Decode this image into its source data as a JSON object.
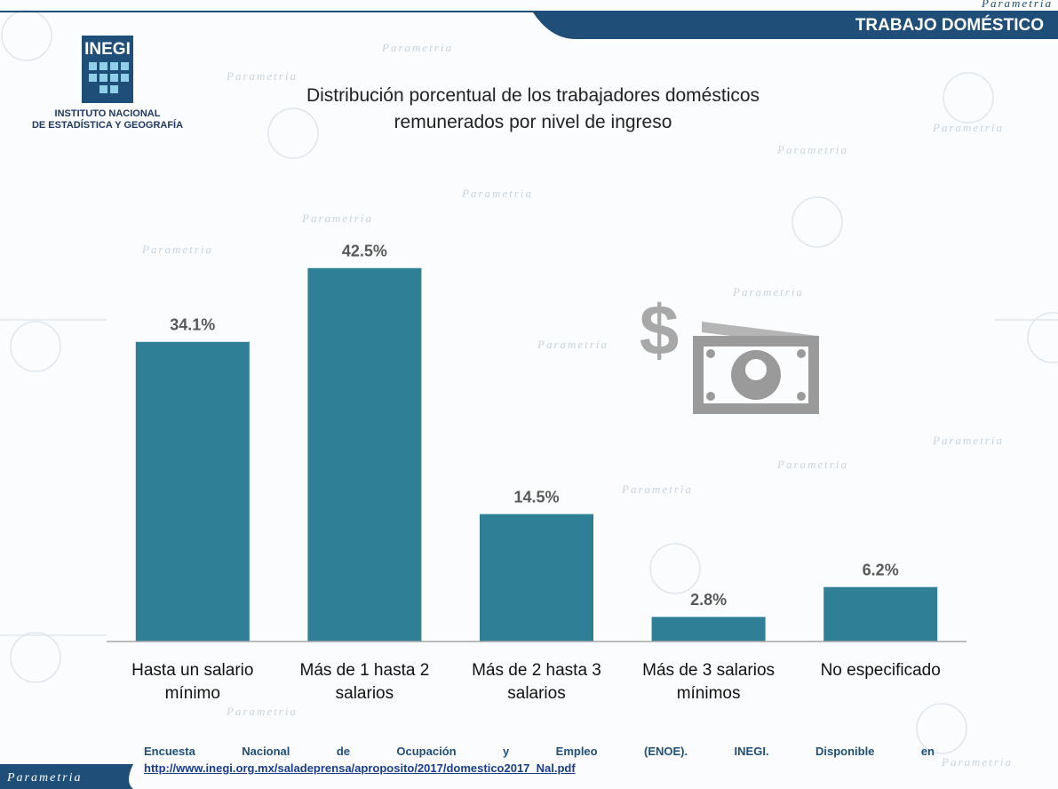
{
  "header": {
    "section": "TRABAJO DOMÉSTICO",
    "brand": "Parametria"
  },
  "logo": {
    "mark": "INEGI",
    "line1": "INSTITUTO NACIONAL",
    "line2": "DE ESTADÍSTICA Y GEOGRAFÍA"
  },
  "chart_data": {
    "type": "bar",
    "title": "Distribución porcentual de los trabajadores domésticos remunerados por nivel de ingreso",
    "categories": [
      "Hasta un salario mínimo",
      "Más de 1 hasta 2 salarios",
      "Más de 2 hasta 3 salarios",
      "Más de 3 salarios mínimos",
      "No especificado"
    ],
    "values": [
      34.1,
      42.5,
      14.5,
      2.8,
      6.2
    ],
    "value_labels": [
      "34.1%",
      "42.5%",
      "14.5%",
      "2.8%",
      "6.2%"
    ],
    "color": "#2f8097",
    "ylim": [
      0,
      45
    ]
  },
  "source": {
    "text": "Encuesta Nacional de Ocupación y Empleo (ENOE). INEGI. Disponible en",
    "url": "http://www.inegi.org.mx/saladeprensa/aproposito/2017/domestico2017_Nal.pdf"
  }
}
